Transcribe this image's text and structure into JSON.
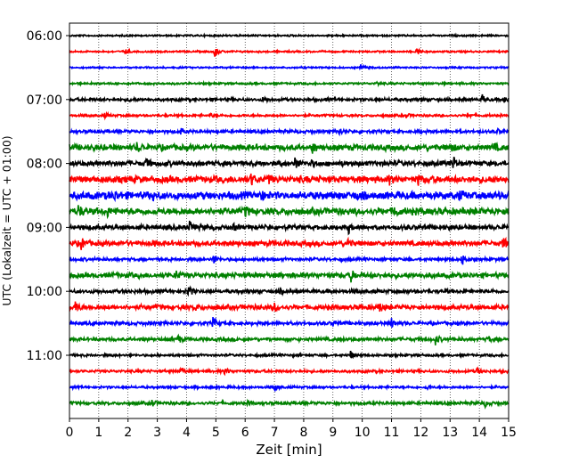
{
  "chart_data": {
    "type": "line",
    "title": "",
    "xlabel": "Zeit  [min]",
    "ylabel": "UTC (Lokalzeit = UTC + 01:00)",
    "xlim": [
      0,
      15
    ],
    "x_ticks": [
      "0",
      "1",
      "2",
      "3",
      "4",
      "5",
      "6",
      "7",
      "8",
      "9",
      "10",
      "11",
      "12",
      "13",
      "14",
      "15"
    ],
    "y_ticks": [
      {
        "label": "06:00",
        "trace": 0
      },
      {
        "label": "07:00",
        "trace": 4
      },
      {
        "label": "08:00",
        "trace": 8
      },
      {
        "label": "09:00",
        "trace": 12
      },
      {
        "label": "10:00",
        "trace": 16
      },
      {
        "label": "11:00",
        "trace": 20
      }
    ],
    "grid": "vertical dotted",
    "colors": [
      "#000000",
      "#ff0000",
      "#0000ff",
      "#008000"
    ],
    "series": [
      {
        "start": "06:00",
        "color": "#000000",
        "noise": 0.1,
        "bursts": []
      },
      {
        "start": "06:15",
        "color": "#ff0000",
        "noise": 0.1,
        "bursts": [
          [
            1.9,
            0.35
          ],
          [
            4.95,
            1.0
          ],
          [
            11.85,
            0.9
          ]
        ]
      },
      {
        "start": "06:30",
        "color": "#0000ff",
        "noise": 0.1,
        "bursts": [
          [
            9.95,
            0.5
          ]
        ]
      },
      {
        "start": "06:45",
        "color": "#008000",
        "noise": 0.12,
        "bursts": [
          [
            10.5,
            0.25
          ]
        ]
      },
      {
        "start": "07:00",
        "color": "#000000",
        "noise": 0.18,
        "bursts": [
          [
            2.0,
            0.3
          ],
          [
            6.6,
            0.3
          ],
          [
            14.1,
            0.5
          ],
          [
            14.85,
            0.45
          ]
        ]
      },
      {
        "start": "07:15",
        "color": "#ff0000",
        "noise": 0.14,
        "bursts": [
          [
            1.2,
            0.3
          ],
          [
            4.8,
            0.3
          ],
          [
            11.5,
            0.3
          ],
          [
            13.6,
            0.35
          ]
        ]
      },
      {
        "start": "07:30",
        "color": "#0000ff",
        "noise": 0.18,
        "bursts": [
          [
            3.8,
            0.45
          ],
          [
            9.2,
            0.6
          ],
          [
            11.9,
            0.35
          ],
          [
            14.6,
            0.35
          ]
        ]
      },
      {
        "start": "07:45",
        "color": "#008000",
        "noise": 0.35,
        "bursts": [
          [
            2.3,
            0.65
          ],
          [
            8.3,
            0.7
          ],
          [
            13.0,
            0.75
          ],
          [
            14.5,
            0.4
          ]
        ]
      },
      {
        "start": "08:00",
        "color": "#000000",
        "noise": 0.3,
        "bursts": [
          [
            2.6,
            0.75
          ],
          [
            7.7,
            0.95
          ],
          [
            8.2,
            0.55
          ],
          [
            13.1,
            1.0
          ]
        ]
      },
      {
        "start": "08:15",
        "color": "#ff0000",
        "noise": 0.4,
        "bursts": [
          [
            6.2,
            0.85
          ],
          [
            6.8,
            0.5
          ],
          [
            10.9,
            0.55
          ],
          [
            11.9,
            0.6
          ]
        ]
      },
      {
        "start": "08:30",
        "color": "#0000ff",
        "noise": 0.45,
        "bursts": [
          [
            1.5,
            0.6
          ],
          [
            2.8,
            0.6
          ],
          [
            6.5,
            0.8
          ],
          [
            9.8,
            0.6
          ],
          [
            13.3,
            0.45
          ]
        ]
      },
      {
        "start": "08:45",
        "color": "#008000",
        "noise": 0.4,
        "bursts": [
          [
            0.3,
            0.8
          ],
          [
            1.3,
            0.45
          ],
          [
            6.0,
            0.75
          ],
          [
            11.1,
            0.75
          ]
        ]
      },
      {
        "start": "09:00",
        "color": "#000000",
        "noise": 0.28,
        "bursts": [
          [
            4.1,
            0.8
          ],
          [
            5.6,
            0.45
          ],
          [
            9.5,
            0.95
          ]
        ]
      },
      {
        "start": "09:15",
        "color": "#ff0000",
        "noise": 0.3,
        "bursts": [
          [
            0.4,
            0.8
          ],
          [
            2.8,
            0.3
          ],
          [
            9.5,
            0.7
          ],
          [
            14.8,
            0.8
          ]
        ]
      },
      {
        "start": "09:30",
        "color": "#0000ff",
        "noise": 0.18,
        "bursts": [
          [
            4.9,
            0.75
          ],
          [
            13.4,
            0.9
          ]
        ]
      },
      {
        "start": "09:45",
        "color": "#008000",
        "noise": 0.3,
        "bursts": [
          [
            3.6,
            0.75
          ],
          [
            9.6,
            0.9
          ]
        ]
      },
      {
        "start": "10:00",
        "color": "#000000",
        "noise": 0.22,
        "bursts": [
          [
            4.05,
            0.95
          ],
          [
            7.2,
            0.3
          ],
          [
            12.8,
            0.3
          ]
        ]
      },
      {
        "start": "10:15",
        "color": "#ff0000",
        "noise": 0.28,
        "bursts": [
          [
            0.2,
            0.8
          ],
          [
            4.3,
            0.4
          ],
          [
            7.0,
            0.65
          ],
          [
            10.6,
            0.65
          ]
        ]
      },
      {
        "start": "10:30",
        "color": "#0000ff",
        "noise": 0.2,
        "bursts": [
          [
            4.9,
            0.8
          ],
          [
            9.0,
            0.45
          ],
          [
            11.0,
            0.7
          ]
        ]
      },
      {
        "start": "10:45",
        "color": "#008000",
        "noise": 0.2,
        "bursts": [
          [
            3.7,
            0.7
          ],
          [
            12.5,
            0.75
          ],
          [
            14.3,
            0.45
          ]
        ]
      },
      {
        "start": "11:00",
        "color": "#000000",
        "noise": 0.14,
        "bursts": [
          [
            9.6,
            0.6
          ]
        ]
      },
      {
        "start": "11:15",
        "color": "#ff0000",
        "noise": 0.16,
        "bursts": [
          [
            3.8,
            0.7
          ],
          [
            5.3,
            0.55
          ],
          [
            13.9,
            0.55
          ]
        ]
      },
      {
        "start": "11:30",
        "color": "#0000ff",
        "noise": 0.14,
        "bursts": [
          [
            7.0,
            0.6
          ],
          [
            12.2,
            0.35
          ]
        ]
      },
      {
        "start": "11:45",
        "color": "#008000",
        "noise": 0.18,
        "bursts": [
          [
            2.8,
            0.6
          ],
          [
            6.1,
            0.3
          ],
          [
            14.2,
            0.45
          ]
        ]
      }
    ]
  }
}
